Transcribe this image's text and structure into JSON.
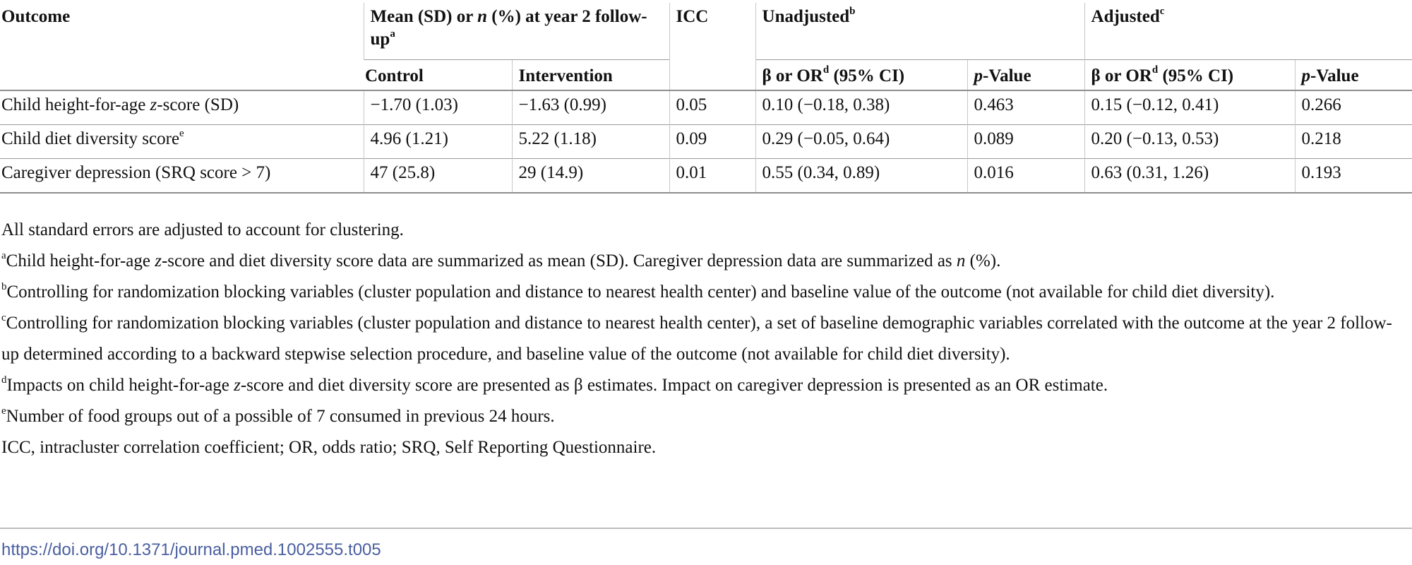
{
  "table": {
    "header": {
      "outcome": "Outcome",
      "mean_pre": "Mean (SD) or ",
      "mean_n": "n",
      "mean_post": " (%) at year 2 follow-up",
      "mean_sup": "a",
      "icc": "ICC",
      "unadjusted": "Unadjusted",
      "unadjusted_sup": "b",
      "adjusted": "Adjusted",
      "adjusted_sup": "c",
      "control": "Control",
      "intervention": "Intervention",
      "beta_pre": "β or OR",
      "beta_sup": "d",
      "beta_post": " (95% CI)",
      "p_italic": "p",
      "p_rest": "-Value"
    },
    "rows": [
      {
        "outcome_pre": "Child height-for-age ",
        "outcome_italic": "z",
        "outcome_post": "-score (SD)",
        "outcome_sup": "",
        "control": "−1.70 (1.03)",
        "intervention": "−1.63 (0.99)",
        "icc": "0.05",
        "unadj_est": "0.10 (−0.18, 0.38)",
        "unadj_p": "0.463",
        "adj_est": "0.15 (−0.12, 0.41)",
        "adj_p": "0.266"
      },
      {
        "outcome_pre": "Child diet diversity score",
        "outcome_italic": "",
        "outcome_post": "",
        "outcome_sup": "e",
        "control": "4.96 (1.21)",
        "intervention": "5.22 (1.18)",
        "icc": "0.09",
        "unadj_est": "0.29 (−0.05, 0.64)",
        "unadj_p": "0.089",
        "adj_est": "0.20 (−0.13, 0.53)",
        "adj_p": "0.218"
      },
      {
        "outcome_pre": "Caregiver depression (SRQ score > 7)",
        "outcome_italic": "",
        "outcome_post": "",
        "outcome_sup": "",
        "control": "47 (25.8)",
        "intervention": "29 (14.9)",
        "icc": "0.01",
        "unadj_est": "0.55 (0.34, 0.89)",
        "unadj_p": "0.016",
        "adj_est": "0.63 (0.31, 1.26)",
        "adj_p": "0.193"
      }
    ]
  },
  "notes": {
    "general": "All standard errors are adjusted to account for clustering.",
    "a_sup": "a",
    "a_1": "Child height-for-age ",
    "a_italic1": "z",
    "a_2": "-score and diet diversity score data are summarized as mean (SD). Caregiver depression data are summarized as ",
    "a_italic2": "n",
    "a_3": " (%).",
    "b_sup": "b",
    "b_text": "Controlling for randomization blocking variables (cluster population and distance to nearest health center) and baseline value of the outcome (not available for child diet diversity).",
    "c_sup": "c",
    "c_text": "Controlling for randomization blocking variables (cluster population and distance to nearest health center), a set of baseline demographic variables correlated with the outcome at the year 2 follow-up determined according to a backward stepwise selection procedure, and baseline value of the outcome (not available for child diet diversity).",
    "d_sup": "d",
    "d_1": "Impacts on child height-for-age ",
    "d_italic": "z",
    "d_2": "-score and diet diversity score are presented as β estimates. Impact on caregiver depression is presented as an OR estimate.",
    "e_sup": "e",
    "e_text": "Number of food groups out of a possible of 7 consumed in previous 24 hours.",
    "abbrev": "ICC, intracluster correlation coefficient; OR, odds ratio; SRQ, Self Reporting Questionnaire."
  },
  "doi": "https://doi.org/10.1371/journal.pmed.1002555.t005"
}
